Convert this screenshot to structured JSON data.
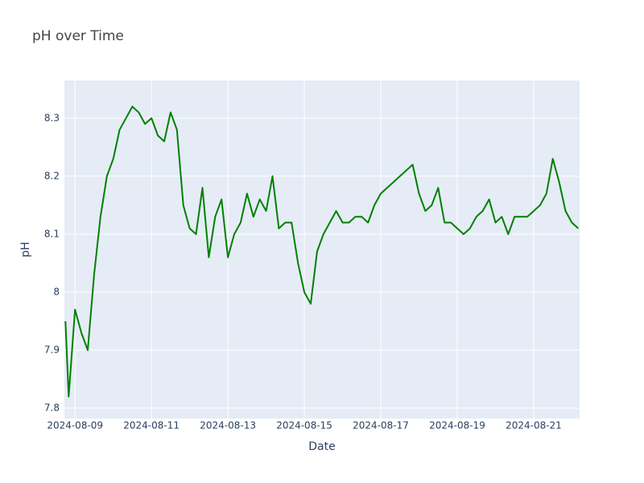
{
  "chart_data": {
    "type": "line",
    "title": "pH over Time",
    "x_label": "Date",
    "y_label": "pH",
    "color": "#008000",
    "grid": true,
    "x": [
      "2024-08-08 18:00",
      "2024-08-08 20:00",
      "2024-08-09 00:00",
      "2024-08-09 04:00",
      "2024-08-09 08:00",
      "2024-08-09 12:00",
      "2024-08-09 16:00",
      "2024-08-09 20:00",
      "2024-08-10 00:00",
      "2024-08-10 04:00",
      "2024-08-10 08:00",
      "2024-08-10 12:00",
      "2024-08-10 16:00",
      "2024-08-10 20:00",
      "2024-08-11 00:00",
      "2024-08-11 04:00",
      "2024-08-11 08:00",
      "2024-08-11 12:00",
      "2024-08-11 16:00",
      "2024-08-11 20:00",
      "2024-08-12 00:00",
      "2024-08-12 04:00",
      "2024-08-12 08:00",
      "2024-08-12 12:00",
      "2024-08-12 16:00",
      "2024-08-12 20:00",
      "2024-08-13 00:00",
      "2024-08-13 04:00",
      "2024-08-13 08:00",
      "2024-08-13 12:00",
      "2024-08-13 16:00",
      "2024-08-13 20:00",
      "2024-08-14 00:00",
      "2024-08-14 04:00",
      "2024-08-14 08:00",
      "2024-08-14 12:00",
      "2024-08-14 16:00",
      "2024-08-14 20:00",
      "2024-08-15 00:00",
      "2024-08-15 04:00",
      "2024-08-15 08:00",
      "2024-08-15 12:00",
      "2024-08-15 16:00",
      "2024-08-15 20:00",
      "2024-08-16 00:00",
      "2024-08-16 04:00",
      "2024-08-16 08:00",
      "2024-08-16 12:00",
      "2024-08-16 16:00",
      "2024-08-16 20:00",
      "2024-08-17 00:00",
      "2024-08-17 04:00",
      "2024-08-17 08:00",
      "2024-08-17 12:00",
      "2024-08-17 16:00",
      "2024-08-17 20:00",
      "2024-08-18 00:00",
      "2024-08-18 04:00",
      "2024-08-18 08:00",
      "2024-08-18 12:00",
      "2024-08-18 16:00",
      "2024-08-18 20:00",
      "2024-08-19 00:00",
      "2024-08-19 04:00",
      "2024-08-19 08:00",
      "2024-08-19 12:00",
      "2024-08-19 16:00",
      "2024-08-19 20:00",
      "2024-08-20 00:00",
      "2024-08-20 04:00",
      "2024-08-20 08:00",
      "2024-08-20 12:00",
      "2024-08-20 16:00",
      "2024-08-20 20:00",
      "2024-08-21 00:00",
      "2024-08-21 04:00",
      "2024-08-21 08:00",
      "2024-08-21 12:00",
      "2024-08-21 16:00",
      "2024-08-21 20:00",
      "2024-08-22 00:00",
      "2024-08-22 04:00"
    ],
    "values": [
      7.95,
      7.82,
      7.97,
      7.93,
      7.9,
      8.03,
      8.13,
      8.2,
      8.23,
      8.28,
      8.3,
      8.32,
      8.31,
      8.29,
      8.3,
      8.27,
      8.26,
      8.31,
      8.28,
      8.15,
      8.11,
      8.1,
      8.18,
      8.06,
      8.13,
      8.16,
      8.06,
      8.1,
      8.12,
      8.17,
      8.13,
      8.16,
      8.14,
      8.2,
      8.11,
      8.12,
      8.12,
      8.05,
      8.0,
      7.98,
      8.07,
      8.1,
      8.12,
      8.14,
      8.12,
      8.12,
      8.13,
      8.13,
      8.12,
      8.15,
      8.17,
      8.18,
      8.19,
      8.2,
      8.21,
      8.22,
      8.17,
      8.14,
      8.15,
      8.18,
      8.12,
      8.12,
      8.11,
      8.1,
      8.11,
      8.13,
      8.14,
      8.16,
      8.12,
      8.13,
      8.1,
      8.13,
      8.13,
      8.13,
      8.14,
      8.15,
      8.17,
      8.23,
      8.19,
      8.14,
      8.12,
      8.11
    ],
    "xlim": [
      "2024-08-08 17:20",
      "2024-08-22 04:50"
    ],
    "xticks": [
      "2024-08-09",
      "2024-08-11",
      "2024-08-13",
      "2024-08-15",
      "2024-08-17",
      "2024-08-19",
      "2024-08-21"
    ],
    "ylim": [
      7.782,
      8.365
    ],
    "yticks": [
      7.8,
      7.9,
      8,
      8.1,
      8.2,
      8.3
    ]
  }
}
